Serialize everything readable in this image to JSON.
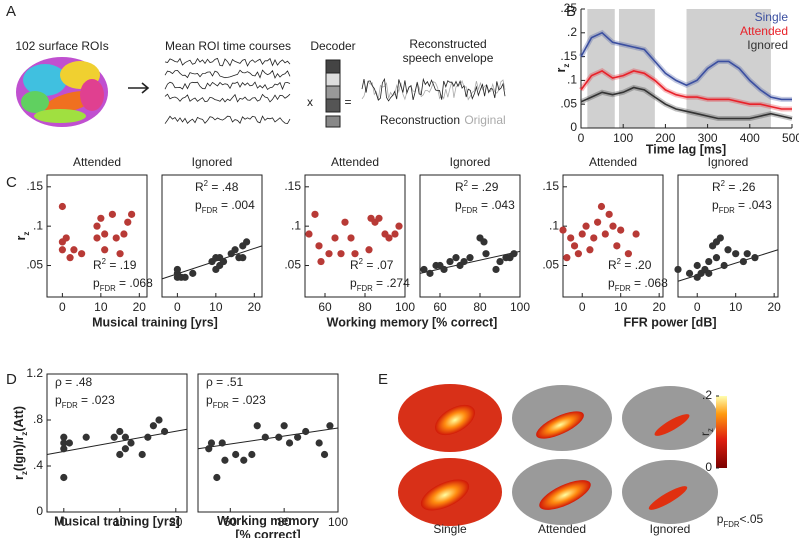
{
  "figure": {
    "panel_labels": [
      "A",
      "B",
      "C",
      "D",
      "E"
    ],
    "panel_a": {
      "brain_caption": "102 surface ROIs",
      "timecourse_caption": "Mean ROI time courses",
      "decoder_caption": "Decoder",
      "times": "x",
      "equals": "=",
      "output_caption": [
        "Reconstructed",
        "speech envelope"
      ],
      "reconstruction": "Reconstruction",
      "original": "Original"
    },
    "panel_e": {
      "captions": [
        "Single",
        "Attended",
        "Ignored"
      ],
      "colorbar": {
        "label": [
          {
            "text": "r"
          },
          {
            "text": "z",
            "sub": true
          }
        ],
        "ticks": [
          {
            "value": 0.2,
            "label": ".2"
          },
          0
        ]
      },
      "note": [
        {
          "text": "p"
        },
        {
          "text": "FDR",
          "sub": true
        },
        {
          "text": "<.05"
        }
      ]
    }
  },
  "chart_data": [
    {
      "type": "line",
      "xlabel": "Time lag [ms]",
      "ylabel": [
        {
          "text": "r"
        },
        {
          "text": "z",
          "sub": true
        }
      ],
      "x": [
        0,
        25,
        50,
        75,
        100,
        125,
        150,
        175,
        200,
        225,
        250,
        275,
        300,
        325,
        350,
        375,
        400,
        425,
        450,
        475,
        500
      ],
      "xlim": [
        0,
        500
      ],
      "xticks": [
        0,
        100,
        200,
        300,
        400,
        500
      ],
      "ylim": [
        0,
        0.25
      ],
      "yticks": [
        0,
        {
          "value": 0.05,
          "label": ".05"
        },
        {
          "value": 0.1,
          "label": ".1"
        },
        {
          "value": 0.15,
          "label": ".15"
        },
        {
          "value": 0.2,
          "label": ".2"
        },
        {
          "value": 0.25,
          "label": ".25"
        }
      ],
      "shaded": [
        [
          15,
          80
        ],
        [
          90,
          175
        ],
        [
          250,
          450
        ]
      ],
      "series": [
        {
          "name": "Single",
          "color": "#3b4fa0",
          "values": [
            0.15,
            0.19,
            0.2,
            0.18,
            0.175,
            0.17,
            0.165,
            0.14,
            0.115,
            0.1,
            0.09,
            0.1,
            0.125,
            0.14,
            0.14,
            0.125,
            0.1,
            0.08,
            0.065,
            0.06,
            0.06
          ]
        },
        {
          "name": "Attended",
          "color": "#e8222a",
          "values": [
            0.08,
            0.11,
            0.12,
            0.105,
            0.11,
            0.12,
            0.115,
            0.1,
            0.08,
            0.07,
            0.065,
            0.065,
            0.06,
            0.06,
            0.06,
            0.055,
            0.05,
            0.05,
            0.045,
            0.04,
            0.04
          ]
        },
        {
          "name": "Ignored",
          "color": "#333333",
          "values": [
            0.055,
            0.065,
            0.075,
            0.07,
            0.075,
            0.085,
            0.08,
            0.065,
            0.05,
            0.04,
            0.035,
            0.03,
            0.025,
            0.02,
            0.02,
            0.02,
            0.02,
            0.025,
            0.03,
            0.025,
            0.02
          ]
        }
      ]
    },
    {
      "type": "scatter",
      "title": "Attended",
      "xlabel": "Musical training [yrs]",
      "ylabel": [
        {
          "text": "r"
        },
        {
          "text": "z",
          "sub": true
        }
      ],
      "color": "#b83a36",
      "x": [
        0,
        0,
        0,
        1,
        2,
        3,
        5,
        9,
        9,
        10,
        11,
        11,
        13,
        14,
        15,
        16,
        17,
        18
      ],
      "y": [
        0.125,
        0.08,
        0.07,
        0.085,
        0.06,
        0.07,
        0.065,
        0.1,
        0.085,
        0.11,
        0.09,
        0.07,
        0.115,
        0.085,
        0.065,
        0.09,
        0.105,
        0.115
      ],
      "xlim": [
        -4,
        22
      ],
      "xticks": [
        0,
        10,
        20
      ],
      "ylim": [
        0.01,
        0.165
      ],
      "yticks": [
        {
          "value": 0.05,
          "label": ".05"
        },
        {
          "value": 0.1,
          "label": ".1"
        },
        {
          "value": 0.15,
          "label": ".15"
        }
      ],
      "annotations": [
        [
          {
            "text": "R"
          },
          {
            "text": "2",
            "sup": true
          },
          {
            "text": " = .19"
          }
        ],
        [
          {
            "text": "p"
          },
          {
            "text": "FDR",
            "sub": true
          },
          {
            "text": " = .068"
          }
        ]
      ]
    },
    {
      "type": "scatter",
      "title": "Ignored",
      "color": "#333333",
      "x": [
        0,
        0,
        0,
        1,
        2,
        4,
        9,
        10,
        10,
        11,
        11,
        12,
        14,
        15,
        16,
        17,
        17,
        18
      ],
      "y": [
        0.04,
        0.035,
        0.045,
        0.035,
        0.035,
        0.04,
        0.055,
        0.06,
        0.045,
        0.05,
        0.06,
        0.055,
        0.065,
        0.07,
        0.06,
        0.075,
        0.06,
        0.08
      ],
      "fit": {
        "x": [
          -4,
          22
        ],
        "y": [
          0.033,
          0.075
        ]
      },
      "xlim": [
        -4,
        22
      ],
      "xticks": [
        0,
        10,
        20
      ],
      "ylim": [
        0.01,
        0.165
      ],
      "annotations": [
        [
          {
            "text": "R"
          },
          {
            "text": "2",
            "sup": true
          },
          {
            "text": " = .48"
          }
        ],
        [
          {
            "text": "p"
          },
          {
            "text": "FDR",
            "sub": true
          },
          {
            "text": " = .004"
          }
        ]
      ]
    },
    {
      "type": "scatter",
      "title": "Attended",
      "xlabel": "Working memory [% correct]",
      "color": "#b83a36",
      "x": [
        52,
        55,
        57,
        58,
        62,
        65,
        68,
        70,
        73,
        75,
        82,
        83,
        85,
        87,
        90,
        92,
        95,
        97
      ],
      "y": [
        0.09,
        0.115,
        0.075,
        0.055,
        0.065,
        0.085,
        0.065,
        0.105,
        0.085,
        0.065,
        0.07,
        0.11,
        0.105,
        0.11,
        0.09,
        0.085,
        0.09,
        0.1
      ],
      "xlim": [
        50,
        100
      ],
      "xticks": [
        60,
        80,
        100
      ],
      "ylim": [
        0.01,
        0.165
      ],
      "yticks": [
        {
          "value": 0.05,
          "label": ".05"
        },
        {
          "value": 0.1,
          "label": ".1"
        },
        {
          "value": 0.15,
          "label": ".15"
        }
      ],
      "annotations": [
        [
          {
            "text": "R"
          },
          {
            "text": "2",
            "sup": true
          },
          {
            "text": " = .07"
          }
        ],
        [
          {
            "text": "p"
          },
          {
            "text": "FDR",
            "sub": true
          },
          {
            "text": " = .274"
          }
        ]
      ]
    },
    {
      "type": "scatter",
      "title": "Ignored",
      "color": "#333333",
      "x": [
        52,
        55,
        58,
        60,
        62,
        65,
        68,
        70,
        72,
        75,
        80,
        82,
        83,
        88,
        90,
        93,
        95,
        97
      ],
      "y": [
        0.045,
        0.04,
        0.05,
        0.05,
        0.045,
        0.055,
        0.06,
        0.05,
        0.055,
        0.06,
        0.085,
        0.08,
        0.065,
        0.045,
        0.055,
        0.06,
        0.06,
        0.065
      ],
      "fit": {
        "x": [
          50,
          100
        ],
        "y": [
          0.04,
          0.068
        ]
      },
      "xlim": [
        50,
        100
      ],
      "xticks": [
        60,
        80,
        100
      ],
      "ylim": [
        0.01,
        0.165
      ],
      "annotations": [
        [
          {
            "text": "R"
          },
          {
            "text": "2",
            "sup": true
          },
          {
            "text": " = .29"
          }
        ],
        [
          {
            "text": "p"
          },
          {
            "text": "FDR",
            "sub": true
          },
          {
            "text": " = .043"
          }
        ]
      ]
    },
    {
      "type": "scatter",
      "title": "Attended",
      "xlabel": "FFR power [dB]",
      "color": "#b83a36",
      "x": [
        -4,
        -5,
        -3,
        -2,
        -1,
        0,
        1,
        2,
        3,
        4,
        5,
        6,
        7,
        8,
        9,
        10,
        12,
        14
      ],
      "y": [
        0.06,
        0.095,
        0.085,
        0.075,
        0.065,
        0.09,
        0.1,
        0.07,
        0.085,
        0.105,
        0.125,
        0.09,
        0.115,
        0.1,
        0.075,
        0.095,
        0.065,
        0.09
      ],
      "xlim": [
        -5,
        21
      ],
      "xticks": [
        0,
        10,
        20
      ],
      "ylim": [
        0.01,
        0.165
      ],
      "yticks": [
        {
          "value": 0.05,
          "label": ".05"
        },
        {
          "value": 0.1,
          "label": ".1"
        },
        {
          "value": 0.15,
          "label": ".15"
        }
      ],
      "annotations": [
        [
          {
            "text": "R"
          },
          {
            "text": "2",
            "sup": true
          },
          {
            "text": " = .20"
          }
        ],
        [
          {
            "text": "p"
          },
          {
            "text": "FDR",
            "sub": true
          },
          {
            "text": " = .068"
          }
        ]
      ]
    },
    {
      "type": "scatter",
      "title": "Ignored",
      "color": "#333333",
      "x": [
        -5,
        -2,
        0,
        0,
        1,
        2,
        3,
        3,
        4,
        5,
        5,
        6,
        7,
        8,
        10,
        12,
        13,
        15
      ],
      "y": [
        0.045,
        0.04,
        0.035,
        0.05,
        0.04,
        0.045,
        0.055,
        0.04,
        0.075,
        0.08,
        0.06,
        0.085,
        0.05,
        0.07,
        0.065,
        0.055,
        0.065,
        0.06
      ],
      "fit": {
        "x": [
          -5,
          21
        ],
        "y": [
          0.03,
          0.07
        ]
      },
      "xlim": [
        -5,
        21
      ],
      "xticks": [
        0,
        10,
        20
      ],
      "ylim": [
        0.01,
        0.165
      ],
      "annotations": [
        [
          {
            "text": "R"
          },
          {
            "text": "2",
            "sup": true
          },
          {
            "text": " = .26"
          }
        ],
        [
          {
            "text": "p"
          },
          {
            "text": "FDR",
            "sub": true
          },
          {
            "text": " = .043"
          }
        ]
      ]
    },
    {
      "type": "scatter",
      "xlabel": "Musical training [yrs]",
      "color": "#333333",
      "ylabel": [
        {
          "text": "r"
        },
        {
          "text": "z",
          "sub": true
        },
        {
          "text": "(Ign)/r"
        },
        {
          "text": "z",
          "sub": true
        },
        {
          "text": "(Att)"
        }
      ],
      "x": [
        0,
        0,
        0,
        0,
        1,
        4,
        9,
        10,
        10,
        11,
        11,
        12,
        14,
        15,
        16,
        17,
        18
      ],
      "y": [
        0.3,
        0.55,
        0.6,
        0.65,
        0.6,
        0.65,
        0.65,
        0.7,
        0.5,
        0.55,
        0.65,
        0.6,
        0.5,
        0.65,
        0.75,
        0.8,
        0.7
      ],
      "fit": {
        "x": [
          -3,
          22
        ],
        "y": [
          0.5,
          0.72
        ]
      },
      "xlim": [
        -3,
        22
      ],
      "xticks": [
        0,
        10,
        20
      ],
      "ylim": [
        0,
        1.2
      ],
      "yticks": [
        0,
        {
          "value": 0.4,
          "label": ".4"
        },
        {
          "value": 0.8,
          "label": ".8"
        },
        1.2
      ],
      "annotations": [
        [
          {
            "text": "ρ = .48"
          }
        ],
        [
          {
            "text": "p"
          },
          {
            "text": "FDR",
            "sub": true
          },
          {
            "text": " = .023"
          }
        ]
      ]
    },
    {
      "type": "scatter",
      "xlabel": [
        "Working memory",
        "[% correct]"
      ],
      "color": "#333333",
      "x": [
        52,
        53,
        55,
        57,
        58,
        62,
        65,
        68,
        70,
        73,
        78,
        80,
        82,
        85,
        88,
        93,
        95,
        97
      ],
      "y": [
        0.55,
        0.6,
        0.3,
        0.6,
        0.45,
        0.5,
        0.45,
        0.5,
        0.75,
        0.65,
        0.65,
        0.75,
        0.6,
        0.65,
        0.7,
        0.6,
        0.5,
        0.75
      ],
      "fit": {
        "x": [
          48,
          100
        ],
        "y": [
          0.55,
          0.73
        ]
      },
      "xlim": [
        48,
        100
      ],
      "xticks": [
        60,
        80,
        100
      ],
      "ylim": [
        0,
        1.2
      ],
      "annotations": [
        [
          {
            "text": "ρ = .51"
          }
        ],
        [
          {
            "text": "p"
          },
          {
            "text": "FDR",
            "sub": true
          },
          {
            "text": " = .023"
          }
        ]
      ]
    }
  ]
}
